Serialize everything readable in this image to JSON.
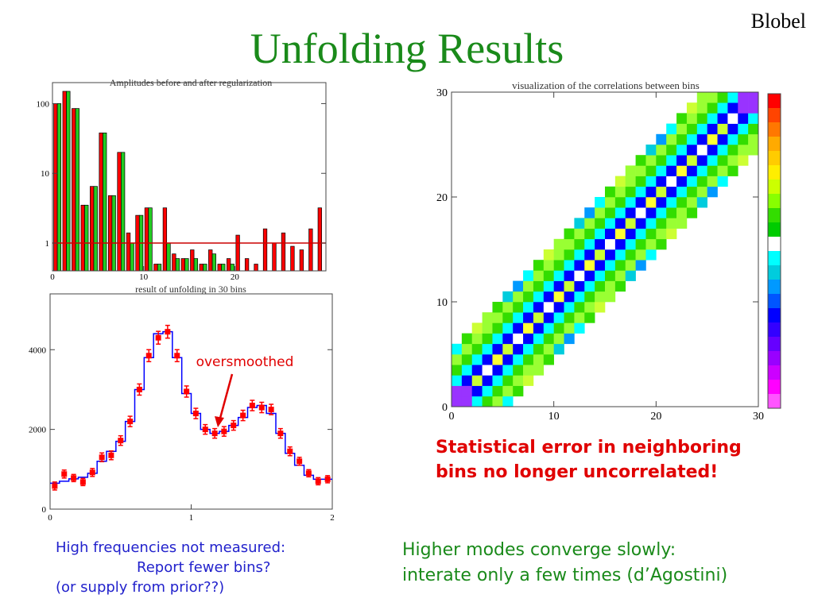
{
  "slide": {
    "title": "Unfolding Results",
    "author": "Blobel",
    "red_note": [
      "Statistical error in neighboring",
      "bins no longer uncorrelated!"
    ],
    "blue_note": [
      "High frequencies not measured:",
      "Report fewer bins?",
      "(or supply from prior??)"
    ],
    "green_note": [
      "Higher modes converge slowly:",
      "interate only a few times (d’Agostini)"
    ],
    "colors": {
      "title": "#1a8a1a",
      "red": "#e00000",
      "blue": "#2222cc",
      "green": "#1a8a1a"
    }
  },
  "chart_data": [
    {
      "type": "bar",
      "title": "Amplitudes before and after regularization",
      "yscale": "log",
      "ylim": [
        0.4,
        200
      ],
      "xlim": [
        0,
        30
      ],
      "x_tick_labels": [
        "0",
        "10",
        "20"
      ],
      "y_tick_labels": [
        "1",
        "10",
        "100"
      ],
      "reference_line": 1,
      "series": [
        {
          "color": "#ff0000",
          "values": [
            100,
            150,
            85,
            3.5,
            6.5,
            38,
            4.8,
            20,
            1.4,
            2.5,
            3.2,
            0.5,
            3.2,
            0.7,
            0.6,
            0.8,
            0.5,
            0.8,
            0.5,
            0.6,
            1.3,
            0.6,
            0.5,
            1.6,
            1.0,
            1.4,
            0.9,
            0.8,
            1.6,
            3.2
          ]
        },
        {
          "color": "#22cc22",
          "values": [
            100,
            150,
            85,
            3.5,
            6.5,
            38,
            4.8,
            20,
            1.0,
            2.5,
            3.2,
            0.5,
            1.0,
            0.6,
            0.6,
            0.6,
            0.5,
            0.7,
            0.5,
            0.5,
            0,
            0,
            0,
            0,
            0,
            0,
            0,
            0,
            0,
            0
          ]
        }
      ]
    },
    {
      "type": "line",
      "title": "result of unfolding in 30 bins",
      "xlim": [
        0,
        2
      ],
      "ylim": [
        0,
        5400
      ],
      "x_tick_labels": [
        "0",
        "1",
        "2"
      ],
      "y_tick_labels": [
        "0",
        "2000",
        "4000"
      ],
      "annotation": "oversmoothed",
      "series": [
        {
          "type": "step",
          "color": "#0000ff",
          "values": [
            650,
            700,
            760,
            800,
            900,
            1200,
            1450,
            1700,
            2200,
            3000,
            3800,
            4400,
            4450,
            3800,
            2900,
            2400,
            2000,
            1900,
            1950,
            2100,
            2300,
            2550,
            2600,
            2400,
            1900,
            1400,
            1100,
            850,
            750,
            750
          ]
        },
        {
          "type": "errorbar",
          "color": "#ff0000",
          "x": [
            0.033,
            0.1,
            0.167,
            0.233,
            0.3,
            0.367,
            0.433,
            0.5,
            0.567,
            0.633,
            0.7,
            0.767,
            0.833,
            0.9,
            0.967,
            1.033,
            1.1,
            1.167,
            1.233,
            1.3,
            1.367,
            1.433,
            1.5,
            1.567,
            1.633,
            1.7,
            1.767,
            1.833,
            1.9,
            1.967
          ],
          "y": [
            580,
            880,
            780,
            680,
            920,
            1300,
            1350,
            1720,
            2200,
            3000,
            3850,
            4300,
            4450,
            3850,
            2950,
            2400,
            2000,
            1900,
            1950,
            2100,
            2350,
            2600,
            2550,
            2500,
            1900,
            1450,
            1200,
            900,
            700,
            750
          ],
          "err": [
            100,
            100,
            90,
            90,
            100,
            110,
            110,
            120,
            130,
            140,
            150,
            160,
            160,
            150,
            140,
            130,
            120,
            120,
            120,
            120,
            130,
            130,
            130,
            130,
            120,
            110,
            100,
            90,
            90,
            90
          ]
        }
      ]
    },
    {
      "type": "heatmap",
      "title": "visualization of the correlations between bins",
      "xlim": [
        0,
        30
      ],
      "ylim": [
        0,
        30
      ],
      "x_tick_labels": [
        "0",
        "10",
        "20",
        "30"
      ],
      "y_tick_labels": [
        "0",
        "10",
        "20",
        "30"
      ],
      "colorbar": [
        "#ff0000",
        "#ff4400",
        "#ff7700",
        "#ffaa00",
        "#ffcc00",
        "#ffee00",
        "#ccff00",
        "#88ff00",
        "#33dd00",
        "#00cc00",
        "#ffffff",
        "#00ffff",
        "#00ccdd",
        "#0099ff",
        "#0055ff",
        "#0000ff",
        "#3300ff",
        "#6600ff",
        "#9900ff",
        "#cc00ff",
        "#ff00ff",
        "#ff55ff"
      ],
      "band_colors": [
        "#ccff33",
        "#0000ff",
        "#00ffff",
        "#33dd00",
        "#99ff33"
      ],
      "band_width": 4
    }
  ]
}
